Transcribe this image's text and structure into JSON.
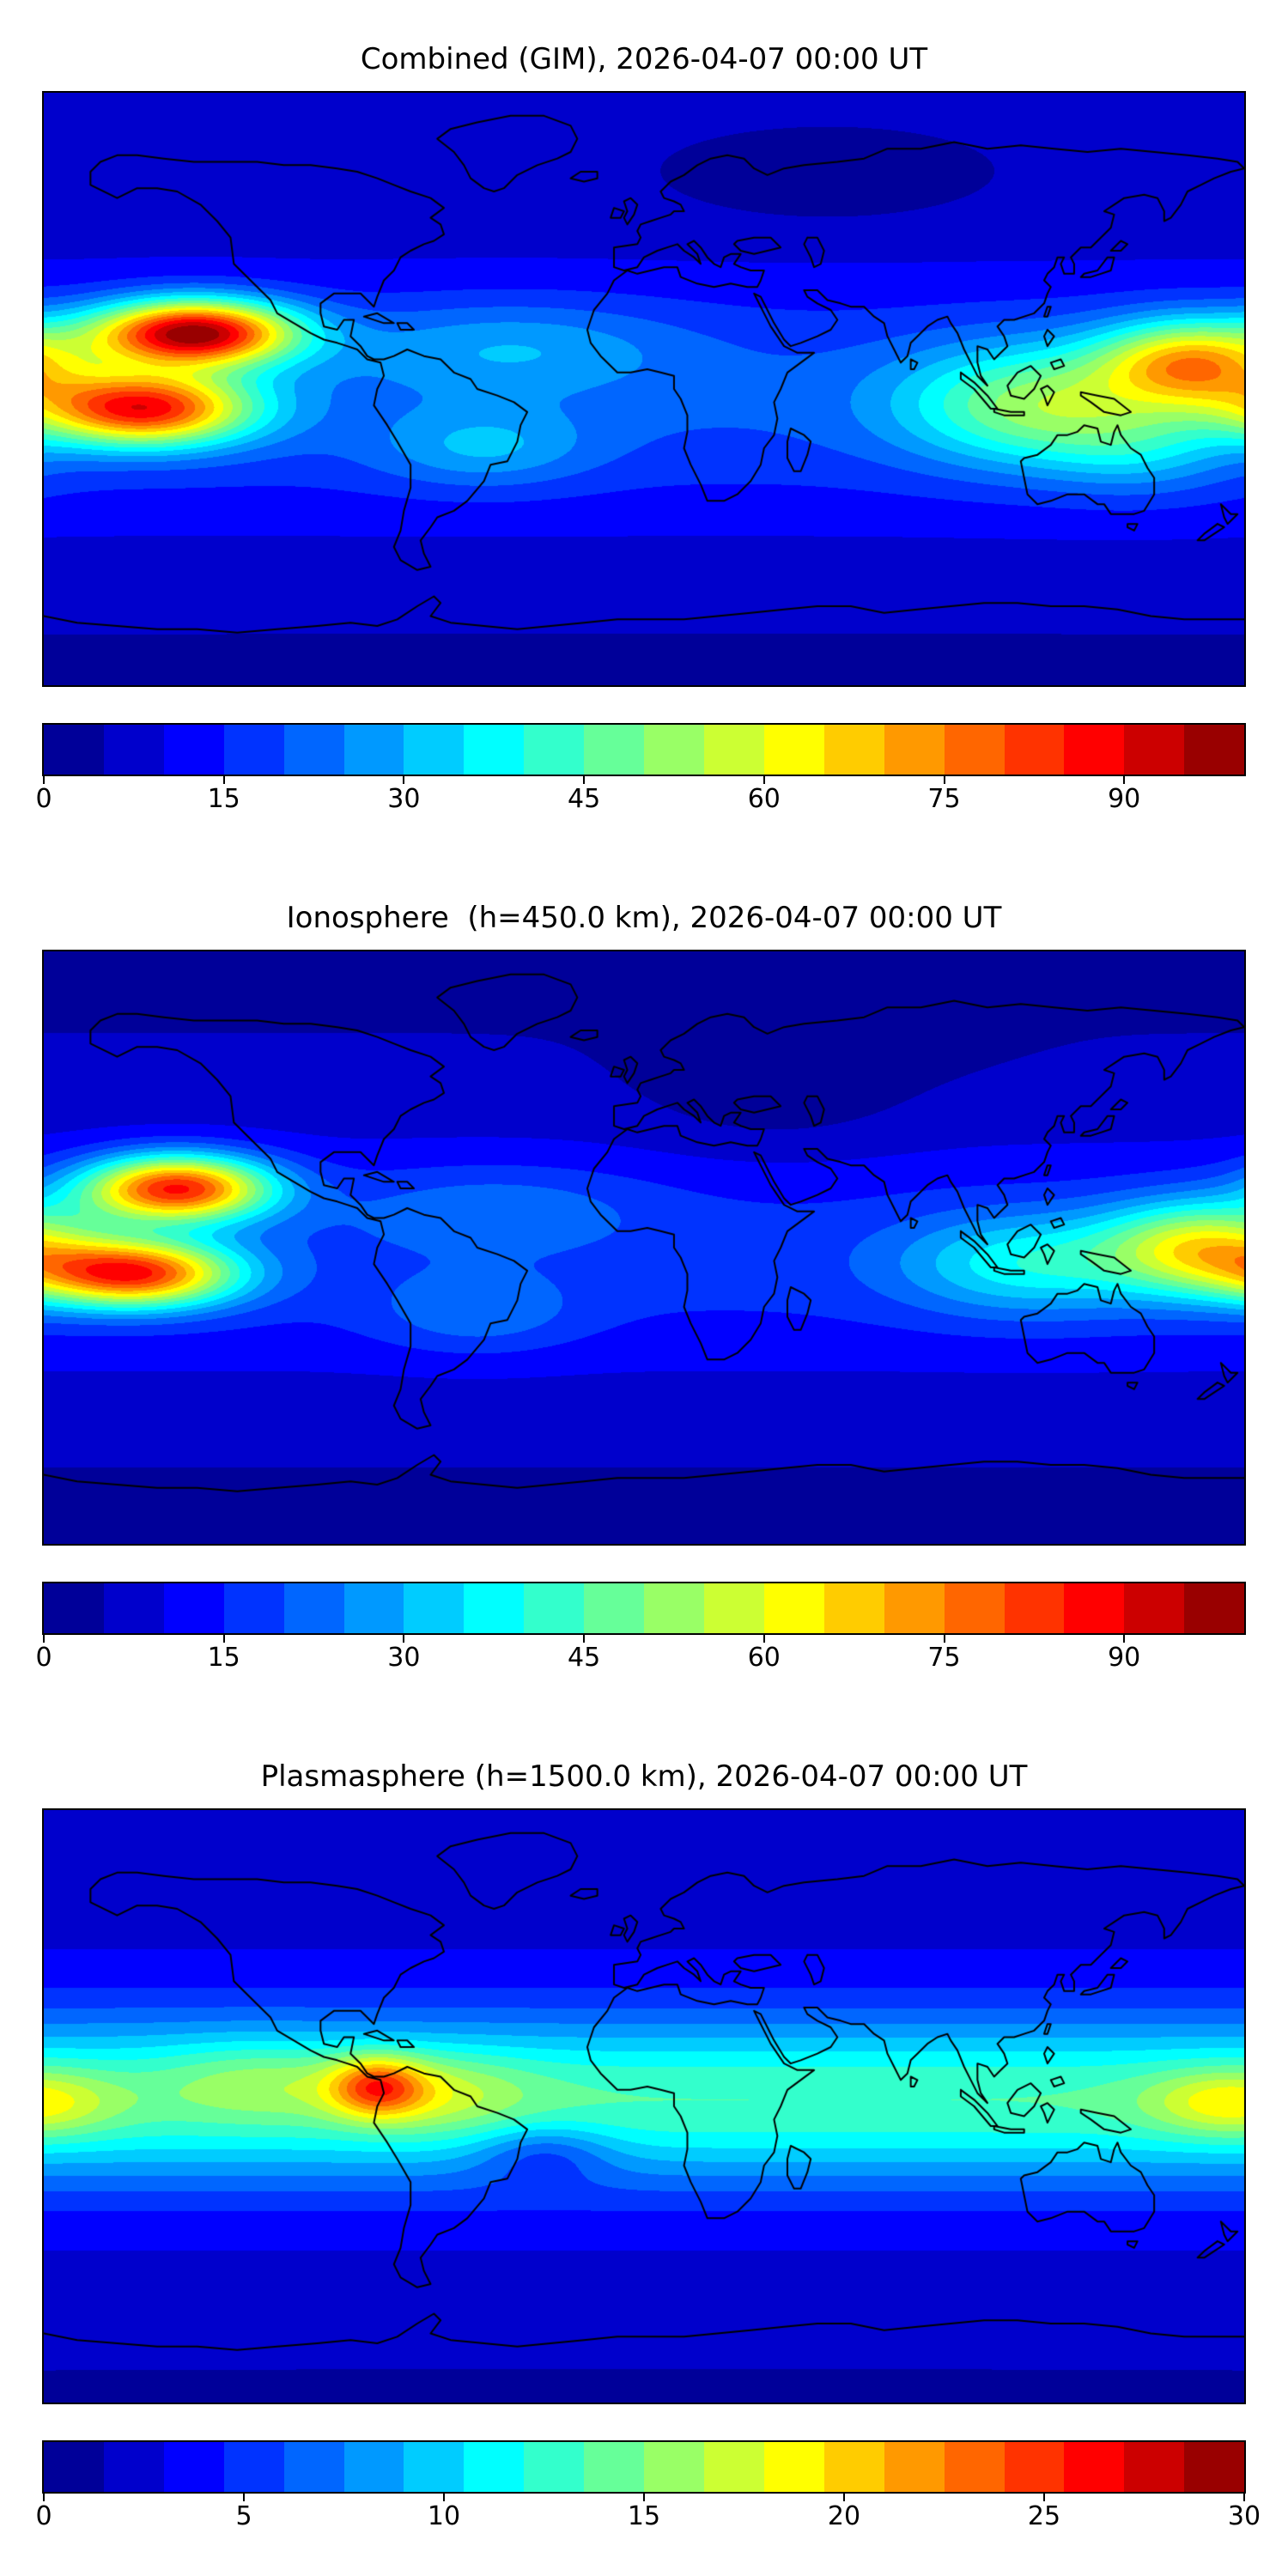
{
  "chart_data": [
    {
      "type": "heatmap",
      "subtype": "filled-contour-world-map",
      "title": "Combined (GIM), 2026-04-07 00:00 UT",
      "layer": "Combined (GIM)",
      "timestamp": "2026-04-07 00:00 UT",
      "projection": "equirectangular",
      "lon_range": [
        -180,
        180
      ],
      "lat_range": [
        -90,
        90
      ],
      "vmin": 0,
      "vmax": 100,
      "n_levels": 20,
      "colormap": "jet",
      "colorbar_ticks": [
        0,
        15,
        30,
        45,
        60,
        75,
        90
      ],
      "field": {
        "base": {
          "offset": 5.5,
          "amp": 15,
          "lat_center": -3,
          "lat_sigma": 38
        },
        "blobs": [
          {
            "lon": -135,
            "lat": 17,
            "slon": 30,
            "slat": 10,
            "amp": 82
          },
          {
            "lon": -150,
            "lat": -6,
            "slon": 32,
            "slat": 11,
            "amp": 68
          },
          {
            "lon": 165,
            "lat": 8,
            "slon": 28,
            "slat": 13,
            "amp": 50
          },
          {
            "lon": 118,
            "lat": -5,
            "slon": 40,
            "slat": 18,
            "amp": 32
          },
          {
            "lon": -40,
            "lat": 13,
            "slon": 50,
            "slat": 14,
            "amp": 12
          },
          {
            "lon": -48,
            "lat": -18,
            "slon": 32,
            "slat": 12,
            "amp": 13
          },
          {
            "lon": 150,
            "lat": -18,
            "slon": 28,
            "slat": 14,
            "amp": 12
          },
          {
            "lon": 55,
            "lat": 62,
            "slon": 45,
            "slat": 13,
            "amp": -4
          },
          {
            "lon": 0,
            "lat": -90,
            "slon": 999,
            "slat": 18,
            "amp": -2
          }
        ]
      }
    },
    {
      "type": "heatmap",
      "subtype": "filled-contour-world-map",
      "title": "Ionosphere  (h=450.0 km), 2026-04-07 00:00 UT",
      "layer": "Ionosphere (h=450.0 km)",
      "timestamp": "2026-04-07 00:00 UT",
      "projection": "equirectangular",
      "lon_range": [
        -180,
        180
      ],
      "lat_range": [
        -90,
        90
      ],
      "vmin": 0,
      "vmax": 100,
      "n_levels": 20,
      "colormap": "jet",
      "colorbar_ticks": [
        0,
        15,
        30,
        45,
        60,
        75,
        90
      ],
      "field": {
        "base": {
          "offset": 4.5,
          "amp": 12.5,
          "lat_center": -3,
          "lat_sigma": 38
        },
        "blobs": [
          {
            "lon": -140,
            "lat": 18,
            "slon": 28,
            "slat": 10,
            "amp": 72
          },
          {
            "lon": -152,
            "lat": -8,
            "slon": 30,
            "slat": 10,
            "amp": 66
          },
          {
            "lon": 168,
            "lat": 0,
            "slon": 30,
            "slat": 14,
            "amp": 44
          },
          {
            "lon": 115,
            "lat": -5,
            "slon": 38,
            "slat": 15,
            "amp": 22
          },
          {
            "lon": -45,
            "lat": 12,
            "slon": 45,
            "slat": 13,
            "amp": 9
          },
          {
            "lon": -50,
            "lat": -20,
            "slon": 30,
            "slat": 12,
            "amp": 10
          },
          {
            "lon": 40,
            "lat": 45,
            "slon": 40,
            "slat": 18,
            "amp": -5
          },
          {
            "lon": 60,
            "lat": 65,
            "slon": 40,
            "slat": 12,
            "amp": -3
          },
          {
            "lon": 0,
            "lat": -90,
            "slon": 999,
            "slat": 16,
            "amp": -2
          }
        ]
      }
    },
    {
      "type": "heatmap",
      "subtype": "filled-contour-world-map",
      "title": "Plasmasphere (h=1500.0 km), 2026-04-07 00:00 UT",
      "layer": "Plasmasphere (h=1500.0 km)",
      "timestamp": "2026-04-07 00:00 UT",
      "projection": "equirectangular",
      "lon_range": [
        -180,
        180
      ],
      "lat_range": [
        -90,
        90
      ],
      "vmin": 0,
      "vmax": 30,
      "n_levels": 20,
      "colormap": "jet",
      "colorbar_ticks": [
        0,
        5,
        10,
        15,
        20,
        25,
        30
      ],
      "field": {
        "base": {
          "offset": 2.5,
          "amp": 11,
          "lat_center": 2,
          "lat_sigma": 26
        },
        "blobs": [
          {
            "lon": -80,
            "lat": 6,
            "slon": 14,
            "slat": 9,
            "amp": 9.5
          },
          {
            "lon": -63,
            "lat": 4,
            "slon": 28,
            "slat": 12,
            "amp": 4
          },
          {
            "lon": -115,
            "lat": 8,
            "slon": 30,
            "slat": 12,
            "amp": 3
          },
          {
            "lon": 176,
            "lat": 1,
            "slon": 24,
            "slat": 10,
            "amp": 6
          },
          {
            "lon": -30,
            "lat": -14,
            "slon": 20,
            "slat": 9,
            "amp": -4
          },
          {
            "lon": 0,
            "lat": -90,
            "slon": 999,
            "slat": 16,
            "amp": -1.5
          }
        ]
      }
    }
  ]
}
